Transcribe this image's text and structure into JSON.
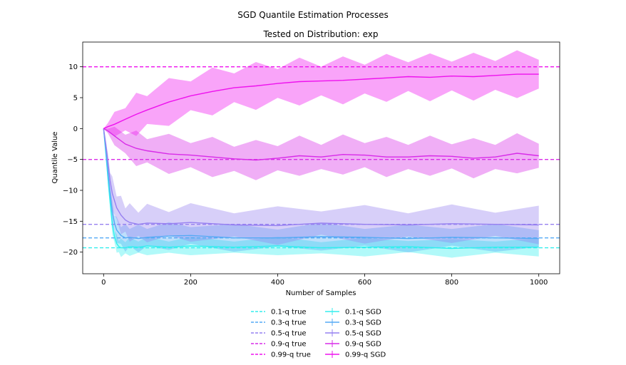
{
  "chart_data": {
    "type": "line",
    "title": "SGD Quantile Estimation Processes",
    "subtitle": "Tested on Distribution: exp",
    "xlabel": "Number of Samples",
    "ylabel": "Quantile Value",
    "xlim": [
      -48,
      1048
    ],
    "ylim": [
      -23.5,
      14
    ],
    "xticks": [
      0,
      200,
      400,
      600,
      800,
      1000
    ],
    "yticks": [
      10,
      5,
      0,
      -5,
      -10,
      -15,
      -20
    ],
    "grid": false,
    "legend_placement": "bottom-center",
    "true_lines": [
      {
        "name": "0.1-q true",
        "value": -19.3,
        "color": "#33eeee"
      },
      {
        "name": "0.3-q true",
        "value": -17.7,
        "color": "#55aaf5"
      },
      {
        "name": "0.5-q true",
        "value": -15.5,
        "color": "#9680f0"
      },
      {
        "name": "0.9-q true",
        "value": -5.0,
        "color": "#d82be8"
      },
      {
        "name": "0.99-q true",
        "value": 10.0,
        "color": "#ee11ee"
      }
    ],
    "sgd_series": [
      {
        "name": "0.1-q SGD",
        "color": "#33eeee",
        "x": [
          0,
          5,
          10,
          15,
          20,
          25,
          30,
          35,
          40,
          50,
          60,
          80,
          100,
          150,
          200,
          300,
          400,
          500,
          600,
          700,
          800,
          900,
          1000
        ],
        "y": [
          0,
          -4,
          -8,
          -12,
          -15.5,
          -17.5,
          -18.6,
          -19.1,
          -19.3,
          -19.3,
          -19.1,
          -19.2,
          -19.0,
          -19.2,
          -19.0,
          -19.2,
          -19.0,
          -19.3,
          -19.2,
          -19.1,
          -19.4,
          -19.2,
          -19.2
        ],
        "spread": [
          0,
          0.5,
          1,
          1.2,
          1.3,
          1.3,
          1.2,
          1.2,
          1.2,
          1.2,
          1.2,
          1.2,
          1.2,
          1.2,
          1.2,
          1.2,
          1.2,
          1.2,
          1.2,
          1.2,
          1.2,
          1.2,
          1.2
        ]
      },
      {
        "name": "0.3-q SGD",
        "color": "#55aaf5",
        "x": [
          0,
          5,
          10,
          15,
          20,
          25,
          30,
          40,
          50,
          60,
          80,
          100,
          150,
          200,
          300,
          400,
          500,
          600,
          700,
          800,
          900,
          1000
        ],
        "y": [
          0,
          -3.5,
          -7,
          -10.5,
          -13.5,
          -15.3,
          -16.4,
          -17.3,
          -17.7,
          -17.6,
          -17.8,
          -17.6,
          -17.4,
          -17.3,
          -17.7,
          -17.7,
          -17.5,
          -17.6,
          -17.8,
          -17.6,
          -17.7,
          -17.8
        ],
        "spread": [
          0,
          0.5,
          1,
          1.3,
          1.5,
          1.6,
          1.7,
          1.8,
          1.8,
          1.8,
          1.8,
          1.8,
          1.8,
          1.8,
          1.8,
          1.8,
          1.8,
          1.8,
          1.8,
          1.8,
          1.8,
          1.8
        ]
      },
      {
        "name": "0.5-q SGD",
        "color": "#9680f0",
        "x": [
          0,
          5,
          10,
          15,
          20,
          30,
          40,
          50,
          60,
          80,
          100,
          150,
          200,
          300,
          400,
          500,
          600,
          700,
          800,
          900,
          1000
        ],
        "y": [
          0,
          -2.5,
          -5.5,
          -8.5,
          -10.5,
          -12.8,
          -14.0,
          -14.8,
          -15.2,
          -15.5,
          -15.3,
          -15.4,
          -15.2,
          -15.6,
          -15.7,
          -15.3,
          -15.5,
          -15.6,
          -15.4,
          -15.5,
          -15.6
        ],
        "spread": [
          0,
          0.5,
          1.2,
          1.8,
          2.2,
          2.4,
          2.5,
          2.5,
          2.5,
          2.5,
          2.5,
          2.5,
          2.5,
          2.5,
          2.5,
          2.5,
          2.5,
          2.5,
          2.5,
          2.5,
          2.5
        ]
      },
      {
        "name": "0.9-q SGD",
        "color": "#d82be8",
        "x": [
          0,
          10,
          25,
          50,
          75,
          100,
          150,
          200,
          250,
          300,
          350,
          400,
          450,
          500,
          550,
          600,
          650,
          700,
          750,
          800,
          850,
          900,
          950,
          1000
        ],
        "y": [
          0,
          -0.4,
          -1.2,
          -2.5,
          -3.2,
          -3.6,
          -4.1,
          -4.3,
          -4.6,
          -4.9,
          -5.1,
          -4.8,
          -4.4,
          -4.6,
          -4.2,
          -4.3,
          -4.6,
          -4.6,
          -4.4,
          -4.5,
          -4.8,
          -4.6,
          -4.0,
          -4.4
        ],
        "spread": [
          0,
          0.5,
          1.2,
          2.0,
          2.3,
          2.5,
          2.6,
          2.6,
          2.6,
          2.6,
          2.6,
          2.6,
          2.6,
          2.6,
          2.6,
          2.6,
          2.6,
          2.6,
          2.6,
          2.6,
          2.6,
          2.6,
          2.6,
          2.6
        ]
      },
      {
        "name": "0.99-q SGD",
        "color": "#ee11ee",
        "x": [
          0,
          10,
          25,
          50,
          75,
          100,
          150,
          200,
          250,
          300,
          350,
          400,
          450,
          500,
          550,
          600,
          650,
          700,
          750,
          800,
          850,
          900,
          950,
          1000
        ],
        "y": [
          0,
          0.3,
          0.7,
          1.5,
          2.3,
          3.0,
          4.3,
          5.3,
          6.0,
          6.6,
          6.9,
          7.3,
          7.6,
          7.7,
          7.8,
          8.0,
          8.2,
          8.4,
          8.3,
          8.5,
          8.4,
          8.6,
          8.8,
          8.8
        ],
        "spread": [
          0,
          0.8,
          1.6,
          2.4,
          2.8,
          3.0,
          3.1,
          3.1,
          3.1,
          3.1,
          3.1,
          3.1,
          3.1,
          3.1,
          3.1,
          3.1,
          3.1,
          3.1,
          3.1,
          3.1,
          3.1,
          3.1,
          3.1,
          3.1
        ]
      }
    ]
  }
}
